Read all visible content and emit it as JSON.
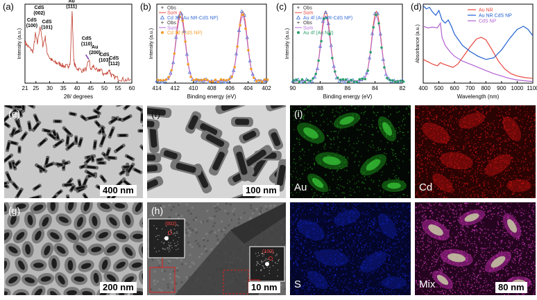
{
  "panels": {
    "a": {
      "label": "(a)"
    },
    "b": {
      "label": "(b)"
    },
    "c": {
      "label": "(c)"
    },
    "d": {
      "label": "(d)"
    },
    "e": {
      "label": "(e)",
      "scalebar": "400 nm"
    },
    "f": {
      "label": "(f)",
      "scalebar": "100 nm"
    },
    "g": {
      "label": "(g)",
      "scalebar": "200 nm"
    },
    "h": {
      "label": "(h)",
      "scalebar": "10 nm",
      "inset1": "(002)",
      "inset2": "(100)"
    },
    "i": {
      "label": "(i)",
      "maps": [
        "Au",
        "Cd",
        "S",
        "Mix"
      ],
      "scalebar": "80 nm"
    }
  },
  "colors": {
    "au": "#22b522",
    "cd": "#e01515",
    "s": "#1525d0",
    "mix": "#e040c8"
  },
  "chart_data": [
    {
      "id": "a",
      "type": "line",
      "xlabel": "2θ/ degrees",
      "ylabel": "Intensity (a.u.)",
      "xlim": [
        21,
        60
      ],
      "xticks": [
        21,
        25,
        30,
        35,
        40,
        45,
        50,
        55,
        60
      ],
      "series": [
        {
          "color": "#c0392b",
          "x": [
            21,
            22,
            23,
            24,
            24.8,
            25.5,
            26.5,
            27.5,
            28.4,
            29,
            30,
            31,
            32,
            33,
            34,
            35,
            36,
            36.8,
            37.5,
            38.2,
            38.8,
            39.5,
            40.5,
            42,
            43.5,
            44.4,
            45,
            46,
            47.5,
            48.6,
            49.5,
            50.5,
            51.8,
            52.5,
            53.5,
            55,
            56.5,
            58,
            60
          ],
          "y": [
            0.52,
            0.47,
            0.43,
            0.4,
            0.62,
            0.5,
            0.72,
            0.48,
            0.58,
            0.4,
            0.32,
            0.28,
            0.26,
            0.25,
            0.24,
            0.22,
            0.21,
            0.22,
            0.25,
            0.92,
            0.28,
            0.2,
            0.18,
            0.16,
            0.18,
            0.3,
            0.16,
            0.22,
            0.14,
            0.18,
            0.12,
            0.11,
            0.17,
            0.1,
            0.08,
            0.06,
            0.05,
            0.04,
            0.03
          ]
        }
      ],
      "annotations": [
        {
          "text": [
            "CdS",
            "(100)"
          ],
          "x": 23.5,
          "y": 0.78
        },
        {
          "text": [
            "CdS",
            "(002)"
          ],
          "x": 26.2,
          "y": 0.94
        },
        {
          "text": [
            "CdS",
            "(101)"
          ],
          "x": 29.0,
          "y": 0.76
        },
        {
          "text": [
            "Au",
            "(111)"
          ],
          "x": 38.0,
          "y": 1.02
        },
        {
          "text": [
            "CdS",
            "(110)"
          ],
          "x": 43.5,
          "y": 0.55
        },
        {
          "text": [
            "Au",
            "(200)"
          ],
          "x": 46.5,
          "y": 0.44
        },
        {
          "text": [
            "CdS",
            "(103)"
          ],
          "x": 50.0,
          "y": 0.34
        },
        {
          "text": [
            "CdS",
            "(112)"
          ],
          "x": 53.5,
          "y": 0.3
        }
      ]
    },
    {
      "id": "b",
      "type": "line",
      "xlabel": "Binding energy (eV)",
      "ylabel": "Intensity (a.u.)",
      "xlim": [
        414,
        402
      ],
      "reversed": true,
      "xticks": [
        414,
        412,
        410,
        408,
        406,
        404,
        402
      ],
      "peaks": [
        411.4,
        404.6
      ],
      "legend": [
        {
          "sym": "+",
          "text": "Obs",
          "color": "#333333"
        },
        {
          "sym": "line",
          "text": "Sum",
          "color": "#e8453c"
        },
        {
          "sym": "tri",
          "text": "Cd 3d (Au NR-CdS NP)",
          "color": "#3a6fd8"
        },
        {
          "sym": "+",
          "text": "Obs",
          "color": "#333333"
        },
        {
          "sym": "line",
          "text": "Sum",
          "color": "#b070d8"
        },
        {
          "sym": "circ",
          "text": "Cd 3d (CdS NP)",
          "color": "#f39c2a"
        }
      ]
    },
    {
      "id": "c",
      "type": "line",
      "xlabel": "Binding energy (eV)",
      "ylabel": "Intensity (a.u.)",
      "xlim": [
        90,
        82
      ],
      "reversed": true,
      "xticks": [
        90,
        88,
        86,
        84,
        82
      ],
      "peaks": [
        87.6,
        83.9
      ],
      "legend": [
        {
          "sym": "+",
          "text": "Obs",
          "color": "#333333"
        },
        {
          "sym": "line",
          "text": "Sum",
          "color": "#e8453c"
        },
        {
          "sym": "tri",
          "text": "Au 4f (Au NR-CdS NP)",
          "color": "#3a6fd8"
        },
        {
          "sym": "+",
          "text": "Obs",
          "color": "#333333"
        },
        {
          "sym": "line",
          "text": "Sum",
          "color": "#b070d8"
        },
        {
          "sym": "circ",
          "text": "Au 4f (Au NR)",
          "color": "#2aa06a"
        }
      ]
    },
    {
      "id": "d",
      "type": "line",
      "xlabel": "Wavelength (nm)",
      "ylabel": "Absorbance (a.u.)",
      "xlim": [
        400,
        1100
      ],
      "xticks": [
        400,
        500,
        600,
        700,
        800,
        900,
        1000,
        1100
      ],
      "series": [
        {
          "name": "Au NR",
          "color": "#e8453c",
          "x": [
            400,
            430,
            460,
            490,
            510,
            530,
            560,
            590,
            620,
            650,
            700,
            740,
            770,
            800,
            840,
            880,
            920,
            960,
            1000,
            1050,
            1100
          ],
          "y": [
            0.3,
            0.27,
            0.24,
            0.22,
            0.26,
            0.24,
            0.22,
            0.2,
            0.24,
            0.32,
            0.46,
            0.56,
            0.58,
            0.55,
            0.42,
            0.28,
            0.18,
            0.12,
            0.09,
            0.07,
            0.06
          ]
        },
        {
          "name": "Au NR CdS NP",
          "color": "#1f5fd0",
          "x": [
            400,
            420,
            440,
            460,
            480,
            500,
            520,
            540,
            560,
            580,
            600,
            650,
            700,
            750,
            800,
            850,
            900,
            950,
            1000,
            1040,
            1070,
            1100
          ],
          "y": [
            0.98,
            0.94,
            0.96,
            0.9,
            0.86,
            0.92,
            0.8,
            0.76,
            0.8,
            0.72,
            0.62,
            0.48,
            0.4,
            0.34,
            0.3,
            0.32,
            0.42,
            0.56,
            0.68,
            0.72,
            0.68,
            0.6
          ]
        },
        {
          "name": "CdS NP",
          "color": "#b060d0",
          "x": [
            400,
            430,
            460,
            490,
            510,
            520,
            540,
            570,
            600,
            650,
            700,
            750,
            800,
            850,
            900,
            950,
            1000,
            1050,
            1100
          ],
          "y": [
            0.72,
            0.7,
            0.71,
            0.7,
            0.76,
            0.58,
            0.48,
            0.4,
            0.34,
            0.28,
            0.24,
            0.2,
            0.16,
            0.12,
            0.09,
            0.06,
            0.04,
            0.03,
            0.02
          ]
        }
      ]
    }
  ]
}
